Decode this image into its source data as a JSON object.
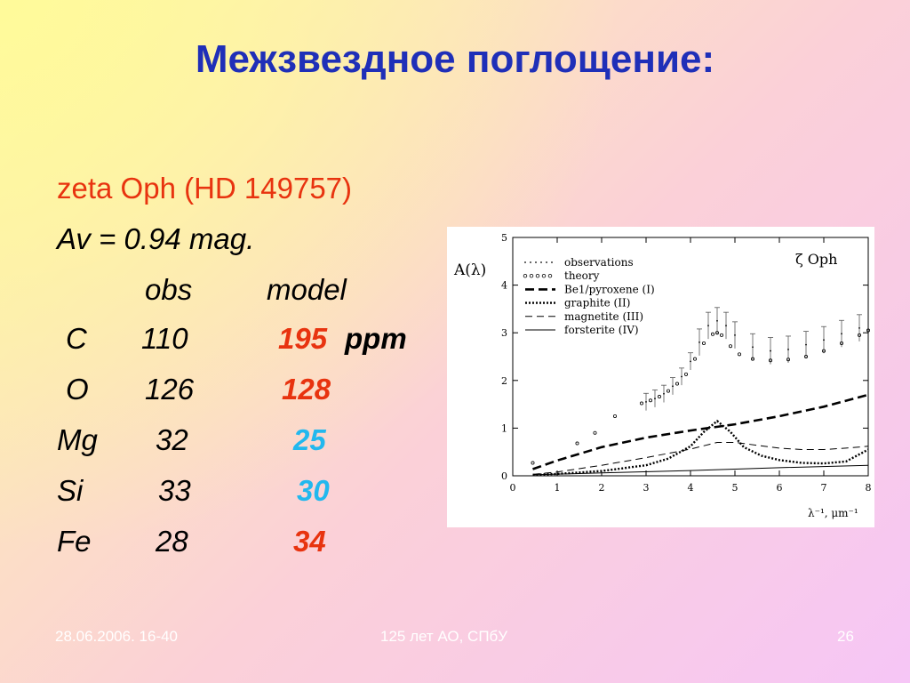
{
  "title": "Межзвездное поглощение:",
  "star": "zeta Oph (HD 149757)",
  "av": "Av = 0.94 mag.",
  "table": {
    "header_obs": "obs",
    "header_model": "model",
    "unit": "ppm",
    "rows": [
      {
        "element": "C",
        "obs": "110",
        "model": "195",
        "model_color": "#e8330f"
      },
      {
        "element": "O",
        "obs": "126",
        "model": "128",
        "model_color": "#e8330f"
      },
      {
        "element": "Mg",
        "obs": "32",
        "model": "25",
        "model_color": "#22b8ee"
      },
      {
        "element": "Si",
        "obs": "33",
        "model": "30",
        "model_color": "#22b8ee"
      },
      {
        "element": "Fe",
        "obs": "28",
        "model": "34",
        "model_color": "#e8330f"
      }
    ]
  },
  "footer": {
    "date": "28.06.2006. 16-40",
    "center": "125 лет АО, СПбУ",
    "page": "26"
  },
  "chart_data": {
    "type": "line",
    "ylabel": "A(λ)",
    "xlabel": "λ⁻¹, μm⁻¹",
    "annotation": "ζ Oph",
    "xlim": [
      0,
      8
    ],
    "ylim": [
      0,
      5
    ],
    "x_ticks": [
      "0",
      "1",
      "2",
      "3",
      "4",
      "5",
      "6",
      "7",
      "8"
    ],
    "y_ticks": [
      "0",
      "1",
      "2",
      "3",
      "4",
      "5"
    ],
    "legend_position": "top-left",
    "legend": [
      "observations",
      "theory",
      "Be1/pyroxene (I)",
      "graphite (II)",
      "magnetite (III)",
      "forsterite (IV)"
    ],
    "series": [
      {
        "name": "observations",
        "x": [
          3.0,
          3.2,
          3.4,
          3.6,
          3.8,
          4.0,
          4.2,
          4.4,
          4.6,
          4.8,
          5.0,
          5.4,
          5.8,
          6.2,
          6.6,
          7.0,
          7.4,
          7.8
        ],
        "values": [
          1.55,
          1.62,
          1.72,
          1.88,
          2.08,
          2.4,
          2.8,
          3.15,
          3.25,
          3.15,
          2.95,
          2.7,
          2.62,
          2.65,
          2.75,
          2.85,
          2.98,
          3.1
        ]
      },
      {
        "name": "theory",
        "x": [
          0.45,
          1.45,
          1.85,
          2.3,
          2.9,
          3.1,
          3.3,
          3.5,
          3.7,
          3.9,
          4.1,
          4.3,
          4.5,
          4.6,
          4.7,
          4.9,
          5.1,
          5.4,
          5.8,
          6.2,
          6.6,
          7.0,
          7.4,
          7.8,
          8.0
        ],
        "values": [
          0.27,
          0.68,
          0.9,
          1.25,
          1.52,
          1.58,
          1.66,
          1.78,
          1.93,
          2.13,
          2.45,
          2.78,
          2.97,
          3.0,
          2.95,
          2.72,
          2.55,
          2.45,
          2.42,
          2.44,
          2.5,
          2.62,
          2.78,
          2.95,
          3.05
        ]
      },
      {
        "name": "Be1/pyroxene (I)",
        "x": [
          0.45,
          1,
          2,
          3,
          4,
          5,
          6,
          7,
          8
        ],
        "values": [
          0.14,
          0.32,
          0.6,
          0.8,
          0.95,
          1.08,
          1.25,
          1.45,
          1.7
        ]
      },
      {
        "name": "graphite (II)",
        "x": [
          0.45,
          1,
          2,
          3,
          3.5,
          4,
          4.3,
          4.6,
          4.9,
          5.2,
          5.6,
          6,
          6.5,
          7,
          7.5,
          8
        ],
        "values": [
          0.02,
          0.04,
          0.1,
          0.22,
          0.36,
          0.62,
          0.92,
          1.15,
          0.92,
          0.6,
          0.42,
          0.33,
          0.27,
          0.26,
          0.3,
          0.55
        ]
      },
      {
        "name": "magnetite (III)",
        "x": [
          0.45,
          1,
          2,
          3,
          4,
          4.6,
          5,
          5.5,
          6,
          6.5,
          7,
          7.5,
          8
        ],
        "values": [
          0.03,
          0.08,
          0.22,
          0.38,
          0.56,
          0.7,
          0.7,
          0.64,
          0.58,
          0.55,
          0.55,
          0.58,
          0.62
        ]
      },
      {
        "name": "forsterite (IV)",
        "x": [
          0.45,
          2,
          4,
          6,
          8
        ],
        "values": [
          0.02,
          0.06,
          0.11,
          0.17,
          0.22
        ]
      }
    ]
  }
}
